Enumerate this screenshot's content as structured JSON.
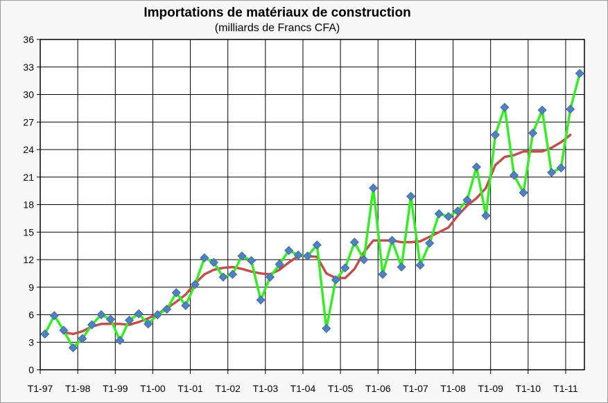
{
  "chart_data": {
    "type": "line",
    "title": "Importations de matériaux de construction",
    "subtitle": "(milliards de Francs CFA)",
    "ylim": [
      0,
      36
    ],
    "yticks": [
      0,
      3,
      6,
      9,
      12,
      15,
      18,
      21,
      24,
      27,
      30,
      33,
      36
    ],
    "xtick_labels": [
      "T1-97",
      "T1-98",
      "T1-99",
      "T1-00",
      "T1-01",
      "T1-02",
      "T1-03",
      "T1-04",
      "T1-05",
      "T1-06",
      "T1-07",
      "T1-08",
      "T1-09",
      "T1-10",
      "T1-11"
    ],
    "grid": true,
    "legend": "none",
    "series": [
      {
        "color": "#33ee22",
        "marker_color": "#4f81bd",
        "marker": "diamond",
        "values": [
          3.9,
          5.9,
          4.3,
          2.4,
          3.4,
          4.9,
          6.0,
          5.5,
          3.2,
          5.4,
          6.1,
          5.0,
          6.0,
          6.6,
          8.4,
          7.0,
          9.3,
          12.2,
          11.7,
          10.1,
          10.4,
          12.4,
          11.9,
          7.6,
          10.1,
          11.5,
          13.0,
          12.5,
          12.4,
          13.6,
          4.5,
          9.8,
          11.1,
          13.9,
          12.0,
          19.8,
          10.4,
          14.1,
          11.2,
          18.9,
          11.4,
          13.8,
          17.0,
          16.7,
          17.3,
          18.5,
          22.1,
          16.8,
          25.6,
          28.6,
          21.2,
          19.3,
          25.8,
          28.3,
          21.5,
          22.0,
          28.4,
          32.3
        ]
      },
      {
        "color": "#c0504d",
        "marker": "none",
        "start_index": 2,
        "values": [
          4.1,
          3.9,
          4.2,
          4.7,
          5.0,
          5.0,
          5.0,
          4.9,
          5.2,
          5.6,
          6.1,
          6.7,
          7.4,
          8.2,
          9.4,
          10.4,
          10.9,
          11.1,
          11.2,
          11.0,
          10.7,
          10.5,
          10.4,
          10.9,
          11.7,
          12.4,
          12.4,
          12.3,
          10.5,
          10.0,
          10.0,
          11.0,
          12.8,
          14.1,
          14.1,
          14.1,
          13.9,
          13.9,
          14.0,
          14.5,
          15.0,
          15.5,
          16.8,
          17.9,
          18.7,
          19.8,
          22.3,
          23.2,
          23.4,
          23.8,
          23.8,
          23.8,
          24.2,
          24.8,
          25.6
        ]
      }
    ]
  }
}
